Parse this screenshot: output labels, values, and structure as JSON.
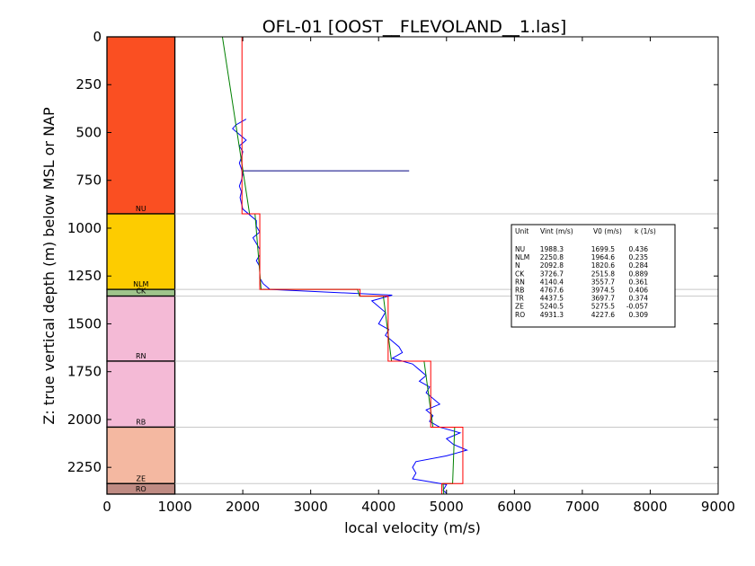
{
  "chart_data": {
    "type": "line",
    "title": "OFL-01 [OOST__FLEVOLAND__1.las]",
    "xlabel": "local velocity (m/s)",
    "ylabel": "Z: true vertical depth (m) below MSL or NAP",
    "xlim": [
      0,
      9000
    ],
    "ylim": [
      2390,
      0
    ],
    "y_inverted": true,
    "grid": false,
    "x_ticks": [
      "0",
      "1000",
      "2000",
      "3000",
      "4000",
      "5000",
      "6000",
      "7000",
      "8000",
      "9000"
    ],
    "y_ticks": [
      "0",
      "250",
      "500",
      "750",
      "1000",
      "1250",
      "1500",
      "1750",
      "2000",
      "2250"
    ],
    "x_tick_values": [
      0,
      1000,
      2000,
      3000,
      4000,
      5000,
      6000,
      7000,
      8000,
      9000
    ],
    "y_tick_values": [
      0,
      250,
      500,
      750,
      1000,
      1250,
      1500,
      1750,
      2000,
      2250
    ],
    "units": [
      {
        "name": "NU",
        "top": 0,
        "base": 925,
        "color": "#fa4f22",
        "vint": 1988.3,
        "v0": 1699.5,
        "k": 0.436
      },
      {
        "name": "NLM",
        "top": 925,
        "base": 1320,
        "color": "#fdcc00",
        "vint": 2250.8,
        "v0": 1964.6,
        "k": 0.235
      },
      {
        "name": "CK",
        "top": 1320,
        "base": 1355,
        "color": "#a0c48b",
        "vint": 3726.7,
        "v0": 2515.8,
        "k": 0.889
      },
      {
        "name": "RN",
        "top": 1355,
        "base": 1695,
        "color": "#f4bad6",
        "vint": 4140.4,
        "v0": 3557.7,
        "k": 0.361
      },
      {
        "name": "RB",
        "top": 1695,
        "base": 2040,
        "color": "#f4bad6",
        "vint": 4767.6,
        "v0": 3974.5,
        "k": 0.406
      },
      {
        "name": "ZE",
        "top": 2040,
        "base": 2335,
        "color": "#f4b8a1",
        "vint": 5240.5,
        "v0": 5275.5,
        "k": -0.057
      },
      {
        "name": "RO",
        "top": 2335,
        "base": 2390,
        "color": "#bf8b83",
        "vint": 4931.3,
        "v0": 4227.6,
        "k": 0.309
      }
    ],
    "table": {
      "header": [
        "Unit",
        "Vint (m/s)",
        "V0 (m/s)",
        "k (1/s)"
      ],
      "rows": [
        [
          "NU",
          "1988.3",
          "1699.5",
          "0.436"
        ],
        [
          "NLM",
          "2250.8",
          "1964.6",
          "0.235"
        ],
        [
          "N",
          "2092.8",
          "1820.6",
          "0.284"
        ],
        [
          "CK",
          "3726.7",
          "2515.8",
          "0.889"
        ],
        [
          "RN",
          "4140.4",
          "3557.7",
          "0.361"
        ],
        [
          "RB",
          "4767.6",
          "3974.5",
          "0.406"
        ],
        [
          "TR",
          "4437.5",
          "3697.7",
          "0.374"
        ],
        [
          "ZE",
          "5240.5",
          "5275.5",
          "-0.057"
        ],
        [
          "RO",
          "4931.3",
          "4227.6",
          "0.309"
        ]
      ]
    },
    "velocity_log": {
      "color": "#0000ff",
      "depth": [
        430,
        460,
        480,
        510,
        540,
        570,
        600,
        630,
        660,
        690,
        720,
        750,
        780,
        810,
        840,
        870,
        900,
        930,
        960,
        990,
        1020,
        1050,
        1080,
        1110,
        1140,
        1170,
        1200,
        1230,
        1260,
        1290,
        1320,
        1350,
        1380,
        1410,
        1440,
        1470,
        1500,
        1530,
        1560,
        1590,
        1620,
        1650,
        1680,
        1710,
        1740,
        1770,
        1800,
        1830,
        1860,
        1890,
        1920,
        1950,
        1980,
        2010,
        2040,
        2070,
        2100,
        2130,
        2160,
        2190,
        2220,
        2250,
        2280,
        2310,
        2340,
        2370,
        2385
      ],
      "velocity": [
        2050,
        1900,
        1850,
        1950,
        2050,
        1950,
        2000,
        1980,
        1950,
        1980,
        2000,
        1980,
        1950,
        1980,
        1960,
        1980,
        2000,
        2100,
        2200,
        2200,
        2250,
        2150,
        2200,
        2250,
        2250,
        2200,
        2250,
        2250,
        2250,
        2300,
        2400,
        4200,
        3900,
        4000,
        4100,
        4050,
        4000,
        4150,
        4100,
        4200,
        4300,
        4350,
        4200,
        4500,
        4600,
        4700,
        4600,
        4750,
        4700,
        4800,
        4900,
        4700,
        4800,
        4750,
        4900,
        5200,
        5000,
        5100,
        5300,
        5000,
        4550,
        4500,
        4550,
        4500,
        5000,
        4950,
        5000
      ]
    },
    "trend_lines": {
      "green": {
        "color": "#008000",
        "depth": [
          0,
          925,
          925,
          1320,
          1320,
          1355,
          1355,
          1695,
          1695,
          2040,
          2040,
          2335,
          2335,
          2390
        ],
        "velocity": [
          1700,
          2100,
          2180,
          2270,
          3690,
          3720,
          4070,
          4190,
          4670,
          4800,
          5120,
          5090,
          4950,
          4960
        ]
      },
      "red": {
        "color": "#ff0000",
        "depth": [
          0,
          925,
          925,
          1320,
          1320,
          1355,
          1355,
          1695,
          1695,
          2040,
          2040,
          2335,
          2335,
          2390
        ],
        "velocity": [
          1988.3,
          1988.3,
          2250.8,
          2250.8,
          3726.7,
          3726.7,
          4140.4,
          4140.4,
          4767.6,
          4767.6,
          5240.5,
          5240.5,
          4931.3,
          4931.3
        ]
      }
    },
    "annotation_line": {
      "color": "#000080",
      "depth": 700,
      "from": 2000,
      "to": 4450
    }
  }
}
